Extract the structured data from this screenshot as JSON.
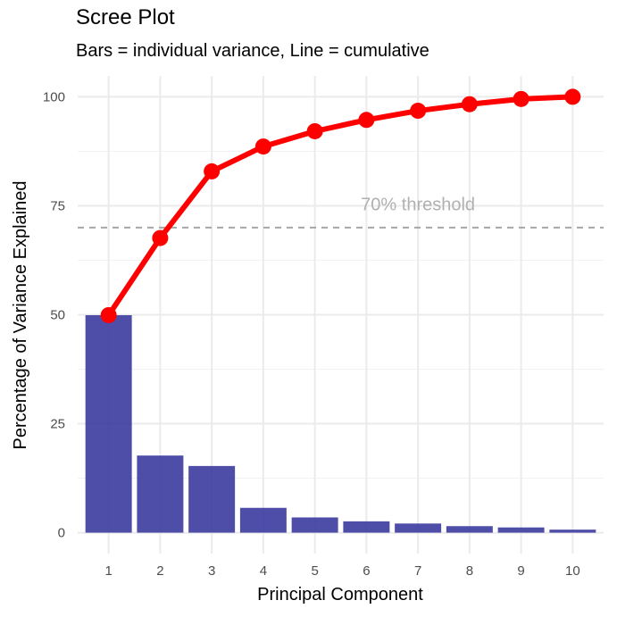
{
  "chart_data": {
    "type": "bar",
    "title": "Scree Plot",
    "subtitle": "Bars = individual variance, Line = cumulative",
    "xlabel": "Principal Component",
    "ylabel": "Percentage of Variance Explained",
    "categories": [
      "1",
      "2",
      "3",
      "4",
      "5",
      "6",
      "7",
      "8",
      "9",
      "10"
    ],
    "y_ticks": [
      "0",
      "25",
      "50",
      "75",
      "100"
    ],
    "ylim": [
      -4.8,
      104.8
    ],
    "grid": true,
    "series": [
      {
        "type": "bar",
        "values": [
          49.9,
          17.7,
          15.3,
          5.7,
          3.5,
          2.6,
          2.1,
          1.5,
          1.2,
          0.7
        ],
        "color": "#3b3ba0"
      },
      {
        "type": "line",
        "values": [
          49.9,
          67.6,
          82.9,
          88.6,
          92.1,
          94.7,
          96.8,
          98.3,
          99.5,
          100.0
        ],
        "color": "#ff0000"
      }
    ],
    "reference_line": {
      "y": 70,
      "style": "dashed",
      "color": "#a6a6a6"
    },
    "annotation": {
      "text": "70% threshold",
      "x": 7.0,
      "y": 74,
      "color": "#b0b0b0"
    }
  }
}
